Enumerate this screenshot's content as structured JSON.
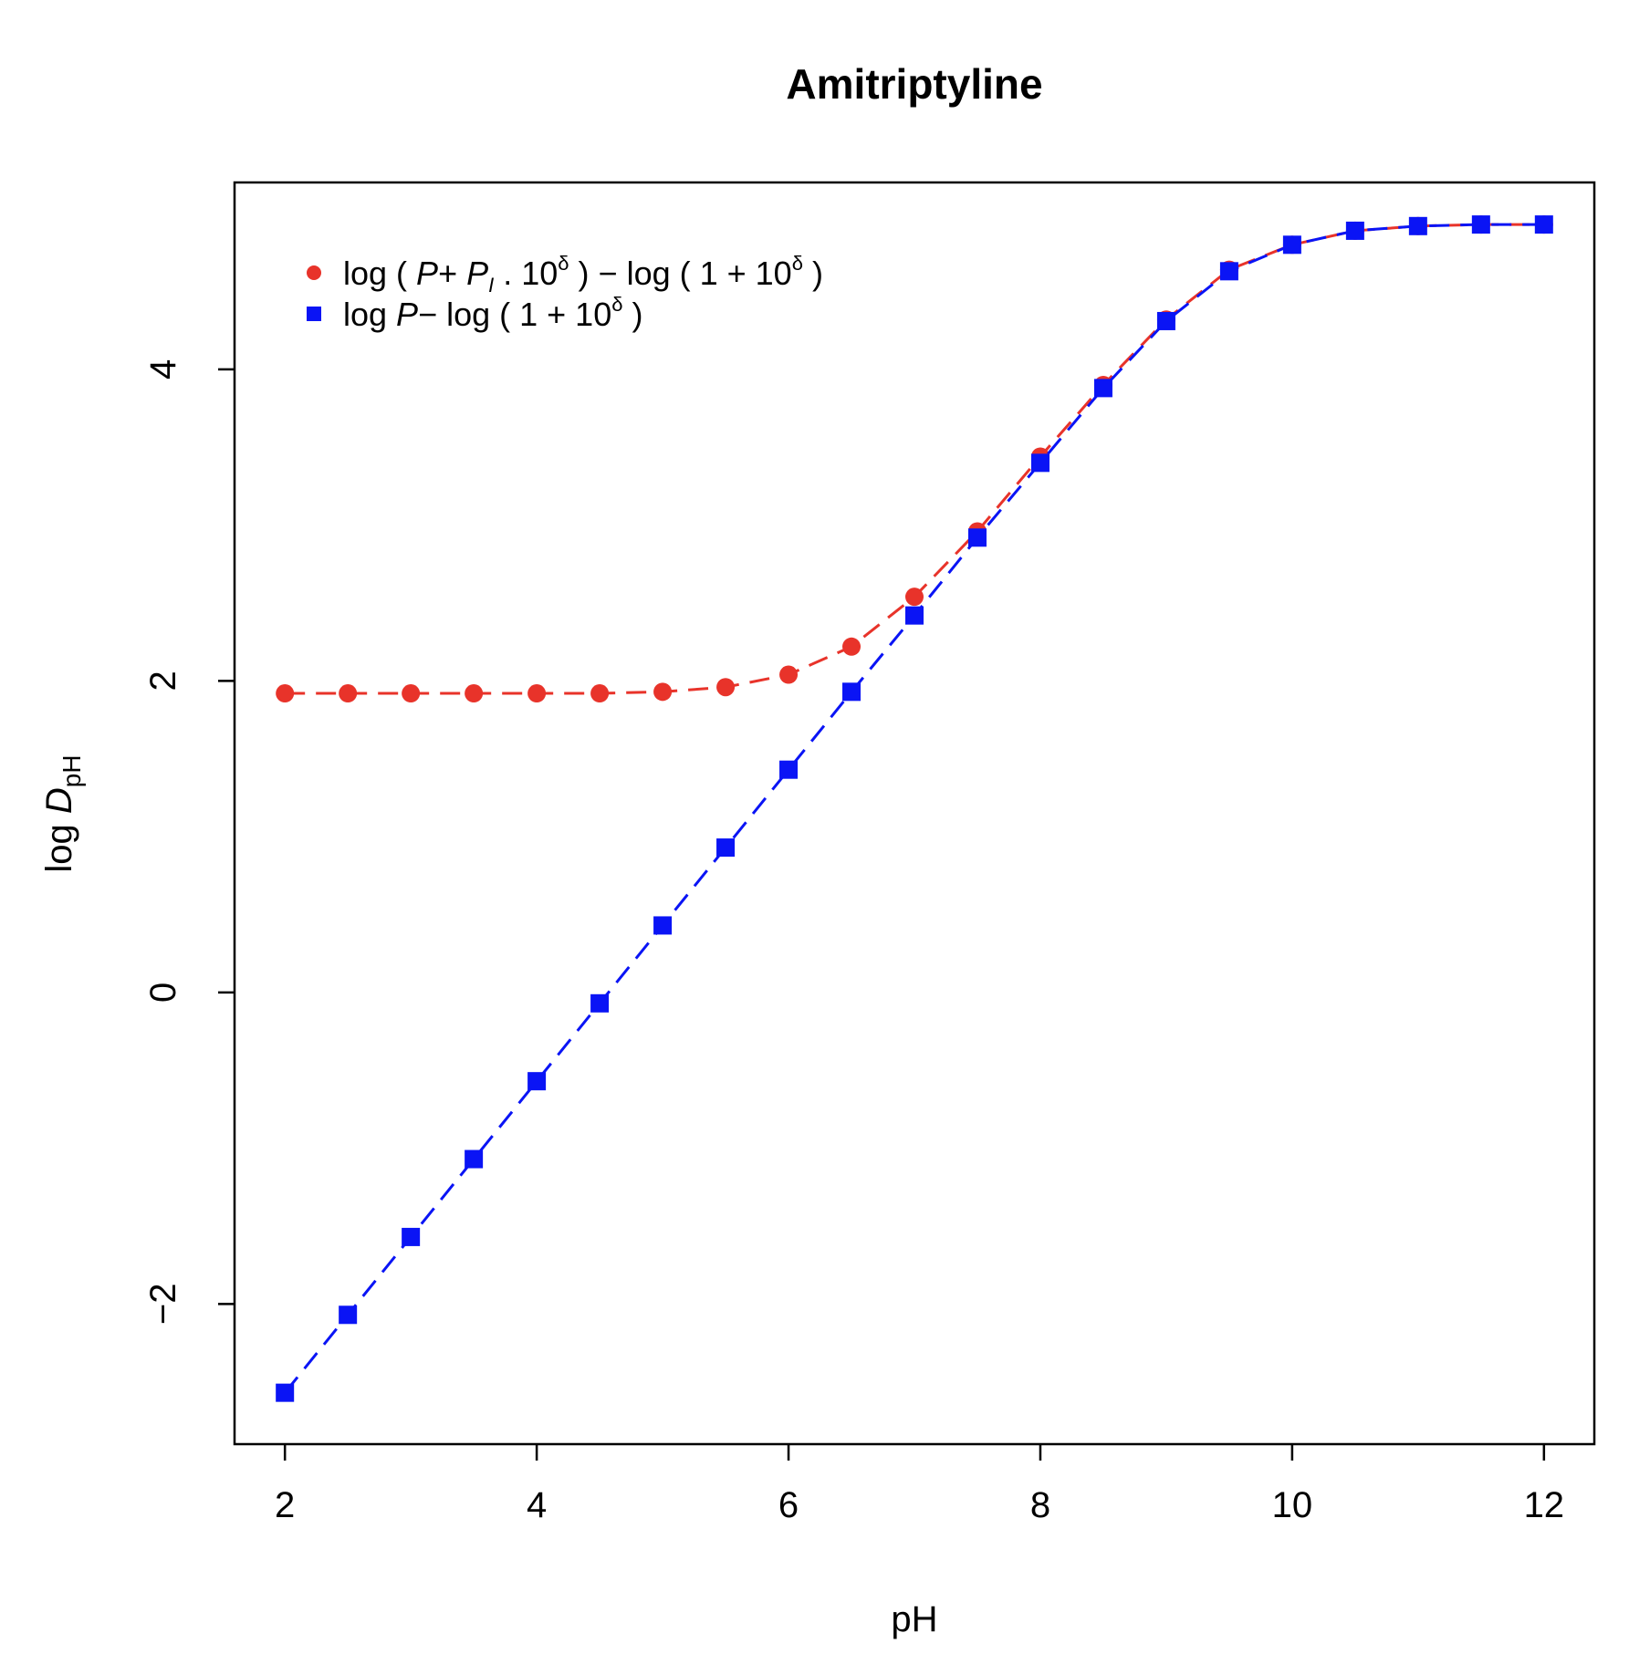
{
  "chart_data": {
    "type": "line",
    "title": "Amitriptyline",
    "xlabel": "pH",
    "ylabel": {
      "main": "log ",
      "var": "D",
      "sub": "pH"
    },
    "xlim": [
      1.6,
      12.4
    ],
    "ylim": [
      -2.9,
      5.2
    ],
    "xticks": [
      2,
      4,
      6,
      8,
      10,
      12
    ],
    "yticks": [
      -2,
      0,
      2,
      4
    ],
    "xtick_labels": [
      "2",
      "4",
      "6",
      "8",
      "10",
      "12"
    ],
    "ytick_labels": [
      "−2",
      "0",
      "2",
      "4"
    ],
    "grid": false,
    "legend_position": "top-left",
    "x": [
      2,
      2.5,
      3,
      3.5,
      4,
      4.5,
      5,
      5.5,
      6,
      6.5,
      7,
      7.5,
      8,
      8.5,
      9,
      9.5,
      10,
      10.5,
      11,
      11.5,
      12
    ],
    "series": [
      {
        "name": "log ( P+ P_I . 10^δ ) − log ( 1 + 10^δ )",
        "color": "#e8332a",
        "marker": "circle",
        "line_style": "dashed",
        "values": [
          1.92,
          1.92,
          1.92,
          1.92,
          1.92,
          1.92,
          1.93,
          1.96,
          2.04,
          2.22,
          2.54,
          2.96,
          3.44,
          3.9,
          4.32,
          4.64,
          4.8,
          4.89,
          4.92,
          4.93,
          4.93
        ]
      },
      {
        "name": "log P− log ( 1 + 10^δ )",
        "color": "#0a14f5",
        "marker": "square",
        "line_style": "dashed",
        "values": [
          -2.57,
          -2.07,
          -1.57,
          -1.07,
          -0.57,
          -0.07,
          0.43,
          0.93,
          1.43,
          1.93,
          2.42,
          2.92,
          3.4,
          3.88,
          4.31,
          4.63,
          4.8,
          4.89,
          4.92,
          4.93,
          4.93
        ]
      }
    ],
    "legend": [
      {
        "parts": [
          "log ( ",
          "P",
          "+ ",
          "P",
          "I",
          " . 10",
          "δ",
          " ) − log ( 1 + 10",
          "δ",
          " )"
        ]
      },
      {
        "parts": [
          "log ",
          "P",
          "− log ( 1 + 10",
          "δ",
          " )"
        ]
      }
    ]
  }
}
